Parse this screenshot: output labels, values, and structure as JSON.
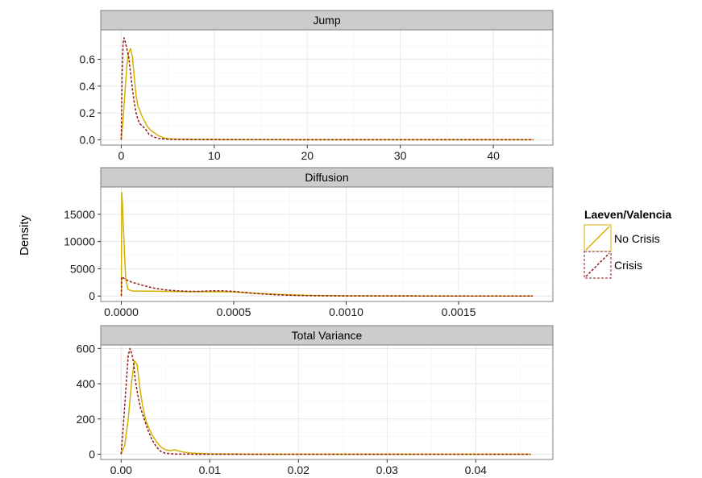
{
  "figure": {
    "ylabel": "Density"
  },
  "legend": {
    "title": "Laeven/Valencia",
    "items": [
      {
        "label": "No Crisis",
        "color": "#D4B100",
        "dash": "solid"
      },
      {
        "label": "Crisis",
        "color": "#8B1A1A",
        "dash": "dotted"
      }
    ]
  },
  "chart_data": [
    {
      "type": "line",
      "title": "Jump",
      "xlim": [
        -2.2,
        46.4
      ],
      "ylim": [
        -0.04,
        0.82
      ],
      "xticks": [
        0,
        10,
        20,
        30,
        40
      ],
      "xtick_labels": [
        "0",
        "10",
        "20",
        "30",
        "40"
      ],
      "yticks": [
        0,
        0.2,
        0.4,
        0.6
      ],
      "ytick_labels": [
        "0.0",
        "0.2",
        "0.4",
        "0.6"
      ],
      "grid": true,
      "series": [
        {
          "name": "No Crisis",
          "x": [
            0.0,
            0.2,
            0.4,
            0.6,
            0.8,
            1.0,
            1.2,
            1.4,
            1.6,
            1.8,
            2.0,
            2.2,
            2.5,
            2.8,
            3.2,
            3.6,
            4.0,
            4.5,
            5.0,
            6.0,
            8.0,
            12.0,
            20.0,
            30.0,
            44.3
          ],
          "y": [
            0.0,
            0.15,
            0.35,
            0.55,
            0.65,
            0.68,
            0.62,
            0.47,
            0.33,
            0.25,
            0.22,
            0.18,
            0.14,
            0.1,
            0.07,
            0.05,
            0.03,
            0.015,
            0.008,
            0.004,
            0.002,
            0.001,
            0.0,
            0.0,
            0.0
          ]
        },
        {
          "name": "Crisis",
          "x": [
            0.0,
            0.1,
            0.2,
            0.3,
            0.4,
            0.6,
            0.8,
            1.0,
            1.2,
            1.4,
            1.6,
            1.8,
            2.0,
            2.3,
            2.6,
            3.0,
            3.5,
            4.0,
            5.0,
            6.0,
            10.0,
            20.0,
            30.0,
            44.3
          ],
          "y": [
            0.0,
            0.5,
            0.72,
            0.76,
            0.74,
            0.68,
            0.62,
            0.5,
            0.38,
            0.28,
            0.2,
            0.15,
            0.12,
            0.1,
            0.08,
            0.04,
            0.02,
            0.01,
            0.004,
            0.002,
            0.001,
            0.0,
            0.0,
            0.0
          ]
        }
      ]
    },
    {
      "type": "line",
      "title": "Diffusion",
      "xlim": [
        -9.14e-05,
        0.0019194
      ],
      "ylim": [
        -1000,
        20000
      ],
      "xticks": [
        0.0,
        0.0005,
        0.001,
        0.0015
      ],
      "xtick_labels": [
        "0.0000",
        "0.0005",
        "0.0010",
        "0.0015"
      ],
      "yticks": [
        0,
        5000,
        10000,
        15000
      ],
      "ytick_labels": [
        "0",
        "5000",
        "10000",
        "15000"
      ],
      "grid": true,
      "series": [
        {
          "name": "No Crisis",
          "x": [
            0.0,
            2e-06,
            5e-06,
            1e-05,
            1.5e-05,
            2e-05,
            3e-05,
            5e-05,
            0.0001,
            0.0002,
            0.0003,
            0.0004,
            0.0005,
            0.0006,
            0.0007,
            0.0008,
            0.0009,
            0.001,
            0.0012,
            0.0015,
            0.00183
          ],
          "y": [
            0,
            19000,
            17000,
            12000,
            7000,
            3000,
            1200,
            900,
            900,
            850,
            800,
            780,
            750,
            500,
            300,
            150,
            80,
            40,
            15,
            5,
            0
          ]
        },
        {
          "name": "Crisis",
          "x": [
            0.0,
            2e-06,
            5e-06,
            1e-05,
            2e-05,
            5e-05,
            0.0001,
            0.00015,
            0.0002,
            0.00025,
            0.0003,
            0.00035,
            0.0004,
            0.00045,
            0.0005,
            0.00055,
            0.0006,
            0.0007,
            0.0008,
            0.0009,
            0.001,
            0.0012,
            0.0015,
            0.00183
          ],
          "y": [
            0,
            3500,
            3400,
            3300,
            3000,
            2500,
            1900,
            1400,
            1100,
            950,
            850,
            850,
            950,
            950,
            850,
            650,
            450,
            200,
            90,
            40,
            20,
            10,
            3,
            0
          ]
        }
      ]
    },
    {
      "type": "line",
      "title": "Total Variance",
      "xlim": [
        -0.0023,
        0.0487
      ],
      "ylim": [
        -30,
        620
      ],
      "xticks": [
        0.0,
        0.01,
        0.02,
        0.03,
        0.04
      ],
      "xtick_labels": [
        "0.00",
        "0.01",
        "0.02",
        "0.03",
        "0.04"
      ],
      "yticks": [
        0,
        200,
        400,
        600
      ],
      "ytick_labels": [
        "0",
        "200",
        "400",
        "600"
      ],
      "grid": true,
      "series": [
        {
          "name": "No Crisis",
          "x": [
            0.0,
            0.0004,
            0.0008,
            0.0012,
            0.0015,
            0.0018,
            0.0021,
            0.0024,
            0.0028,
            0.0032,
            0.0036,
            0.004,
            0.0045,
            0.005,
            0.0055,
            0.006,
            0.0065,
            0.007,
            0.008,
            0.01,
            0.015,
            0.03,
            0.0462
          ],
          "y": [
            0,
            50,
            200,
            420,
            530,
            510,
            380,
            280,
            190,
            140,
            100,
            70,
            40,
            25,
            20,
            25,
            18,
            12,
            6,
            2,
            0,
            0,
            0
          ]
        },
        {
          "name": "Crisis",
          "x": [
            0.0,
            0.0003,
            0.0006,
            0.0008,
            0.001,
            0.0012,
            0.0014,
            0.0016,
            0.0019,
            0.0022,
            0.0026,
            0.003,
            0.0035,
            0.004,
            0.0045,
            0.005,
            0.006,
            0.008,
            0.01,
            0.02,
            0.0462
          ],
          "y": [
            0,
            200,
            420,
            560,
            600,
            570,
            520,
            420,
            330,
            260,
            200,
            140,
            80,
            40,
            15,
            5,
            1,
            0,
            0,
            0,
            0
          ]
        }
      ]
    }
  ]
}
